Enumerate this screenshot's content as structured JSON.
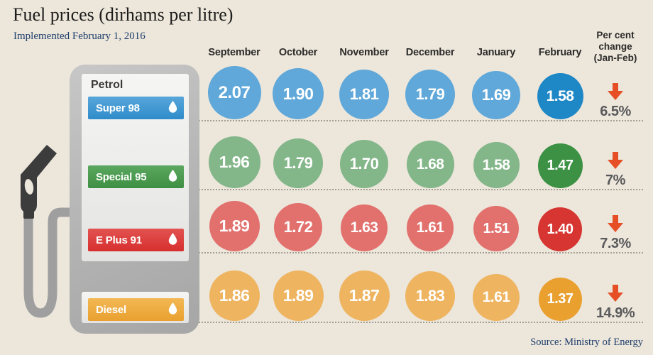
{
  "title": "Fuel prices (dirhams per litre)",
  "subtitle": "Implemented February 1, 2016",
  "source": "Source: Ministry of Energy",
  "pump_label": "Petrol",
  "months": [
    "September",
    "October",
    "November",
    "December",
    "January",
    "February"
  ],
  "change_header_lines": [
    "Per cent",
    "change",
    "(Jan-Feb)"
  ],
  "rows": [
    {
      "fuel": "Super 98",
      "display_values": [
        "2.07",
        "1.90",
        "1.81",
        "1.79",
        "1.69",
        "1.58"
      ],
      "change": "6.5%",
      "circle_color": "#5fa8d9",
      "final_circle_color": "#1e87c6",
      "bar_color_top": "#58a6da",
      "bar_color_bottom": "#2f8cca"
    },
    {
      "fuel": "Special 95",
      "display_values": [
        "1.96",
        "1.79",
        "1.70",
        "1.68",
        "1.58",
        "1.47"
      ],
      "change": "7%",
      "circle_color": "#83b689",
      "final_circle_color": "#3c9144",
      "bar_color_top": "#5ba75f",
      "bar_color_bottom": "#3e8f43"
    },
    {
      "fuel": "E Plus 91",
      "display_values": [
        "1.89",
        "1.72",
        "1.63",
        "1.61",
        "1.51",
        "1.40"
      ],
      "change": "7.3%",
      "circle_color": "#e2716e",
      "final_circle_color": "#d63531",
      "bar_color_top": "#e25350",
      "bar_color_bottom": "#d62f2e"
    },
    {
      "fuel": "Diesel",
      "display_values": [
        "1.86",
        "1.89",
        "1.87",
        "1.83",
        "1.61",
        "1.37"
      ],
      "change": "14.9%",
      "circle_color": "#eeb45f",
      "final_circle_color": "#e9a02f",
      "bar_color_top": "#f2b854",
      "bar_color_bottom": "#e9a02f"
    }
  ],
  "colors": {
    "background": "#ece6db",
    "arrow": "#e64f26",
    "percent_text": "#59595b",
    "month_text": "#2c2b29",
    "navy_text": "#21406c",
    "dotted_line": "#a29e92",
    "pump_body": "#b6b6b6",
    "pump_panel": "#efefee",
    "nozzle": "#3c3c3c",
    "hose": "#9f9f9f",
    "droplet_icon": "#ffffff"
  },
  "chart_data": {
    "type": "table",
    "title": "Fuel prices (dirhams per litre)",
    "subtitle": "Implemented February 1, 2016",
    "units": "dirhams per litre",
    "categories": [
      "September",
      "October",
      "November",
      "December",
      "January",
      "February"
    ],
    "series": [
      {
        "name": "Super 98",
        "values": [
          2.07,
          1.9,
          1.81,
          1.79,
          1.69,
          1.58
        ],
        "percent_change_jan_feb": -6.5
      },
      {
        "name": "Special 95",
        "values": [
          1.96,
          1.79,
          1.7,
          1.68,
          1.58,
          1.47
        ],
        "percent_change_jan_feb": -7.0
      },
      {
        "name": "E Plus 91",
        "values": [
          1.89,
          1.72,
          1.63,
          1.61,
          1.51,
          1.4
        ],
        "percent_change_jan_feb": -7.3
      },
      {
        "name": "Diesel",
        "values": [
          1.86,
          1.89,
          1.87,
          1.83,
          1.61,
          1.37
        ],
        "percent_change_jan_feb": -14.9
      }
    ],
    "layout_hints": {
      "encoding": "circles sized proportionally to value (area ~ value), one row per fuel type, circles bottom-aligned on dotted baselines",
      "final_column_highlighted": "February circle uses darker saturated color",
      "change_column": "red down-arrow + percent at far right",
      "legend_position": "fuel pump illustration on left acts as row legend",
      "source": "Source: Ministry of Energy"
    }
  }
}
